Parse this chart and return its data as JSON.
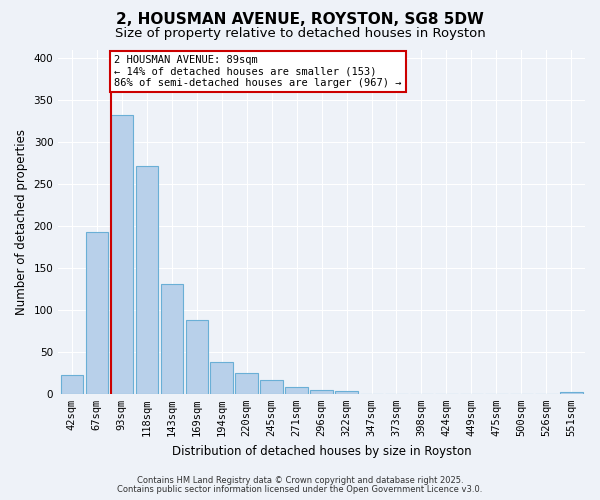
{
  "title": "2, HOUSMAN AVENUE, ROYSTON, SG8 5DW",
  "subtitle": "Size of property relative to detached houses in Royston",
  "xlabel": "Distribution of detached houses by size in Royston",
  "ylabel": "Number of detached properties",
  "bar_labels": [
    "42sqm",
    "67sqm",
    "93sqm",
    "118sqm",
    "143sqm",
    "169sqm",
    "194sqm",
    "220sqm",
    "245sqm",
    "271sqm",
    "296sqm",
    "322sqm",
    "347sqm",
    "373sqm",
    "398sqm",
    "424sqm",
    "449sqm",
    "475sqm",
    "500sqm",
    "526sqm",
    "551sqm"
  ],
  "bar_values": [
    23,
    193,
    333,
    272,
    131,
    88,
    38,
    25,
    16,
    8,
    5,
    3,
    0,
    0,
    0,
    0,
    0,
    0,
    0,
    0,
    2
  ],
  "bar_color": "#b8d0ea",
  "bar_edge_color": "#6aafd6",
  "vline_x_index": 2,
  "vline_color": "#cc0000",
  "annotation_title": "2 HOUSMAN AVENUE: 89sqm",
  "annotation_line1": "← 14% of detached houses are smaller (153)",
  "annotation_line2": "86% of semi-detached houses are larger (967) →",
  "annotation_box_color": "#ffffff",
  "annotation_box_edge": "#cc0000",
  "ylim": [
    0,
    410
  ],
  "yticks": [
    0,
    50,
    100,
    150,
    200,
    250,
    300,
    350,
    400
  ],
  "footer1": "Contains HM Land Registry data © Crown copyright and database right 2025.",
  "footer2": "Contains public sector information licensed under the Open Government Licence v3.0.",
  "bg_color": "#eef2f8",
  "title_fontsize": 11,
  "subtitle_fontsize": 9.5,
  "axis_label_fontsize": 8.5,
  "tick_fontsize": 7.5,
  "footer_fontsize": 6.0
}
